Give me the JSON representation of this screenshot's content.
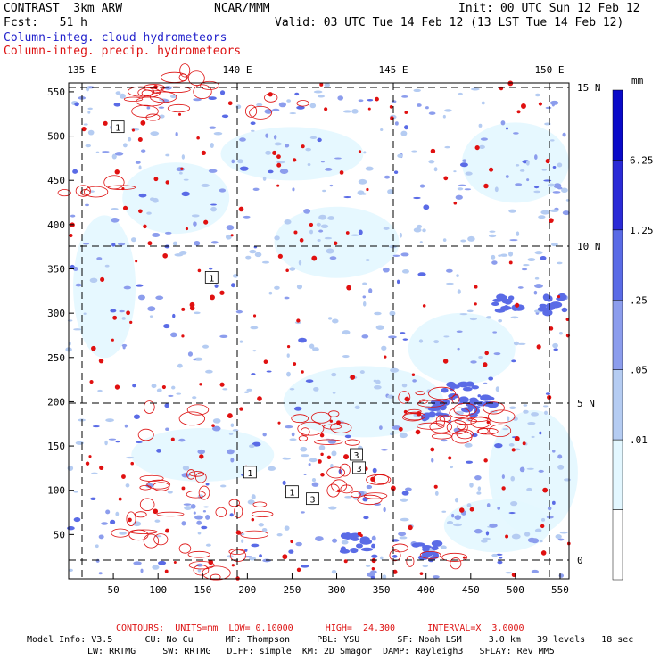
{
  "header": {
    "model": "CONTRAST  3km ARW",
    "org": "NCAR/MMM",
    "init": "Init: 00 UTC Sun 12 Feb 12",
    "fcst": "Fcst:   51 h",
    "valid": "Valid: 03 UTC Tue 14 Feb 12 (13 LST Tue 14 Feb 12)",
    "field1": "Column-integ. cloud hydrometeors",
    "field2": "Column-integ. precip. hydrometeors"
  },
  "chart_data": {
    "type": "heatmap",
    "x_ticks": [
      "50",
      "100",
      "150",
      "200",
      "250",
      "300",
      "350",
      "400",
      "450",
      "500",
      "550"
    ],
    "y_ticks": [
      "50",
      "100",
      "150",
      "200",
      "250",
      "300",
      "350",
      "400",
      "450",
      "500",
      "550"
    ],
    "xlim": [
      0,
      560
    ],
    "ylim": [
      0,
      560
    ],
    "lon_labels": [
      "135 E",
      "140 E",
      "145 E",
      "150 E"
    ],
    "lat_labels": [
      "15 N",
      "10 N",
      "5 N",
      "0"
    ],
    "colorbar": {
      "unit": "mm",
      "levels": [
        "6.25",
        "1.25",
        ".25",
        ".05",
        ".01"
      ],
      "colors": [
        "#ffffff",
        "#e3f7ff",
        "#b5ccf2",
        "#8c9ded",
        "#5a6be6",
        "#2a2ad6",
        "#0a0ac8"
      ]
    },
    "contour_boxes": [
      {
        "label": "1",
        "x": 55,
        "y": 510
      },
      {
        "label": "1",
        "x": 160,
        "y": 340
      },
      {
        "label": "1",
        "x": 203,
        "y": 120
      },
      {
        "label": "1",
        "x": 250,
        "y": 98
      },
      {
        "label": "3",
        "x": 273,
        "y": 90
      },
      {
        "label": "3",
        "x": 322,
        "y": 140
      },
      {
        "label": "3",
        "x": 325,
        "y": 125
      }
    ],
    "contour_info": "CONTOURS:  UNITS=mm  LOW= 0.10000      HIGH=  24.300      INTERVAL=X  3.0000"
  },
  "footer": {
    "line1": "Model Info: V3.5      CU: No Cu      MP: Thompson     PBL: YSU       SF: Noah LSM     3.0 km   39 levels   18 sec",
    "line2": "LW: RRTMG     SW: RRTMG   DIFF: simple  KM: 2D Smagor  DAMP: Rayleigh3   SFLAY: Rev MM5"
  }
}
